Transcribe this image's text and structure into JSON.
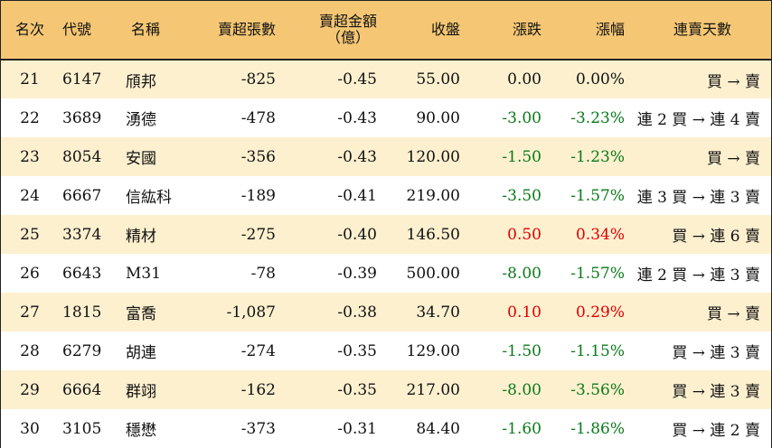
{
  "headers": {
    "rank": "名次",
    "code": "代號",
    "name": "名稱",
    "net_sell_lots": "賣超張數",
    "net_sell_amount": "賣超金額",
    "net_sell_amount_unit": "（億）",
    "close": "收盤",
    "change": "漲跌",
    "pct": "漲幅",
    "streak": "連賣天數"
  },
  "colors": {
    "header_bg": "#f5c774",
    "odd_row_bg": "#fdf0cf",
    "up": "#e00000",
    "down": "#0a7a1a"
  },
  "rows": [
    {
      "rank": "21",
      "code": "6147",
      "name": "頎邦",
      "lots": "-825",
      "amount": "-0.45",
      "close": "55.00",
      "change": "0.00",
      "pct": "0.00%",
      "dir": "flat",
      "streak": "買 → 賣"
    },
    {
      "rank": "22",
      "code": "3689",
      "name": "湧德",
      "lots": "-478",
      "amount": "-0.43",
      "close": "90.00",
      "change": "-3.00",
      "pct": "-3.23%",
      "dir": "down",
      "streak": "連 2 買 → 連 4 賣"
    },
    {
      "rank": "23",
      "code": "8054",
      "name": "安國",
      "lots": "-356",
      "amount": "-0.43",
      "close": "120.00",
      "change": "-1.50",
      "pct": "-1.23%",
      "dir": "down",
      "streak": "買 → 賣"
    },
    {
      "rank": "24",
      "code": "6667",
      "name": "信紘科",
      "lots": "-189",
      "amount": "-0.41",
      "close": "219.00",
      "change": "-3.50",
      "pct": "-1.57%",
      "dir": "down",
      "streak": "連 3 買 → 連 3 賣"
    },
    {
      "rank": "25",
      "code": "3374",
      "name": "精材",
      "lots": "-275",
      "amount": "-0.40",
      "close": "146.50",
      "change": "0.50",
      "pct": "0.34%",
      "dir": "up",
      "streak": "買 → 連 6 賣"
    },
    {
      "rank": "26",
      "code": "6643",
      "name": "M31",
      "lots": "-78",
      "amount": "-0.39",
      "close": "500.00",
      "change": "-8.00",
      "pct": "-1.57%",
      "dir": "down",
      "streak": "連 2 買 → 連 3 賣"
    },
    {
      "rank": "27",
      "code": "1815",
      "name": "富喬",
      "lots": "-1,087",
      "amount": "-0.38",
      "close": "34.70",
      "change": "0.10",
      "pct": "0.29%",
      "dir": "up",
      "streak": "買 → 賣"
    },
    {
      "rank": "28",
      "code": "6279",
      "name": "胡連",
      "lots": "-274",
      "amount": "-0.35",
      "close": "129.00",
      "change": "-1.50",
      "pct": "-1.15%",
      "dir": "down",
      "streak": "買 → 連 3 賣"
    },
    {
      "rank": "29",
      "code": "6664",
      "name": "群翊",
      "lots": "-162",
      "amount": "-0.35",
      "close": "217.00",
      "change": "-8.00",
      "pct": "-3.56%",
      "dir": "down",
      "streak": "買 → 連 3 賣"
    },
    {
      "rank": "30",
      "code": "3105",
      "name": "穩懋",
      "lots": "-373",
      "amount": "-0.31",
      "close": "84.40",
      "change": "-1.60",
      "pct": "-1.86%",
      "dir": "down",
      "streak": "買 → 連 2 賣"
    }
  ]
}
